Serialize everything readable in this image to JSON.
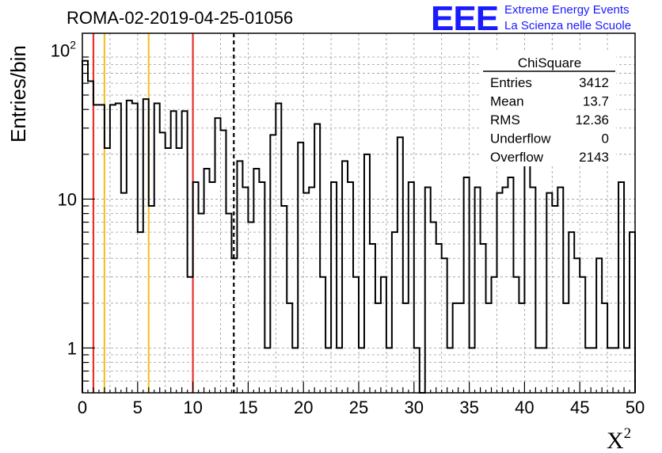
{
  "title": "ROMA-02-2019-04-25-01056",
  "logo": {
    "mark": "EEE",
    "line1": "Extreme Energy Events",
    "line2": "La Scienza nelle Scuole"
  },
  "chart_data": {
    "type": "histogram",
    "xlabel": "X",
    "xlabel_superscript": "2",
    "ylabel": "Entries/bin",
    "xlim": [
      0,
      50
    ],
    "ylim": [
      0.5,
      130
    ],
    "yscale": "log",
    "grid": true,
    "bin_width": 0.5,
    "x_ticks": [
      "0",
      "5",
      "10",
      "15",
      "20",
      "25",
      "30",
      "35",
      "40",
      "45",
      "50"
    ],
    "y_ticks": [
      {
        "value": 1,
        "label": "1",
        "exp": ""
      },
      {
        "value": 10,
        "label": "10",
        "exp": ""
      },
      {
        "value": 100,
        "label": "10",
        "exp": "2"
      }
    ],
    "values": [
      85,
      62,
      43,
      43,
      22,
      43,
      44,
      11,
      46,
      44,
      6,
      47,
      9,
      44,
      28,
      22,
      39,
      22,
      39,
      3,
      13,
      8,
      16,
      13,
      35,
      29,
      8,
      4,
      18,
      12,
      7,
      16,
      13,
      1,
      27,
      44,
      9,
      2,
      1,
      24,
      11,
      12,
      32,
      3,
      1,
      13,
      1,
      18,
      13,
      3,
      1,
      20,
      5,
      2,
      3,
      1,
      6,
      26,
      2,
      13,
      1,
      0,
      12,
      7,
      5,
      4,
      1,
      2,
      2,
      14,
      1,
      12,
      5,
      2,
      3,
      11,
      12,
      14,
      3,
      2,
      17,
      12,
      1,
      1,
      11,
      9,
      12,
      2,
      6,
      4,
      3,
      1,
      1,
      4,
      2,
      1,
      1,
      13,
      1,
      6
    ],
    "lines": [
      {
        "x": 1,
        "color": "#e8312a",
        "style": "solid"
      },
      {
        "x": 2,
        "color": "#f2c230",
        "style": "solid"
      },
      {
        "x": 6,
        "color": "#f2c230",
        "style": "solid"
      },
      {
        "x": 10,
        "color": "#e8312a",
        "style": "solid"
      },
      {
        "x": 13.7,
        "color": "#000000",
        "style": "dashed"
      }
    ],
    "stats": {
      "name": "ChiSquare",
      "rows": [
        {
          "label": "Entries",
          "value": "3412"
        },
        {
          "label": "Mean",
          "value": "13.7"
        },
        {
          "label": "RMS",
          "value": "12.36"
        },
        {
          "label": "Underflow",
          "value": "0"
        },
        {
          "label": "Overflow",
          "value": "2143"
        }
      ]
    }
  }
}
